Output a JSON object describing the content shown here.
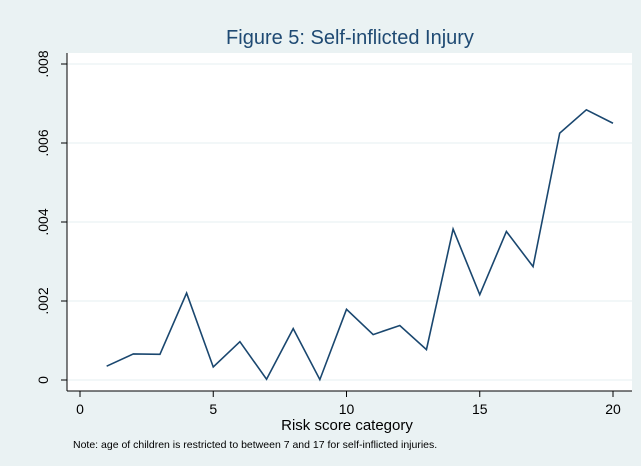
{
  "chart_data": {
    "type": "line",
    "title": "Figure 5: Self-inflicted Injury",
    "xlabel": "Risk score category",
    "ylabel": "",
    "note": "Note: age of children is restricted to between 7 and 17 for self-inflicted injuries.",
    "xlim": [
      0,
      20
    ],
    "ylim": [
      0,
      0.008
    ],
    "xticks": [
      0,
      5,
      10,
      15,
      20
    ],
    "xtick_labels": [
      "0",
      "5",
      "10",
      "15",
      "20"
    ],
    "yticks": [
      0,
      0.002,
      0.004,
      0.006,
      0.008
    ],
    "ytick_labels": [
      "0",
      ".002",
      ".004",
      ".006",
      ".008"
    ],
    "grid": "horizontal",
    "legend": "none",
    "series": [
      {
        "x": [
          1,
          2,
          3,
          4,
          5,
          6,
          7,
          8,
          9,
          10,
          11,
          12,
          13,
          14,
          15,
          16,
          17,
          18,
          19,
          20
        ],
        "values": [
          0.00035,
          0.00066,
          0.00065,
          0.0022,
          0.00033,
          0.00097,
          2e-05,
          0.0013,
          1e-05,
          0.00179,
          0.00115,
          0.00138,
          0.00077,
          0.00382,
          0.00216,
          0.00376,
          0.00287,
          0.00625,
          0.00684,
          0.0065
        ]
      }
    ],
    "colors": {
      "line": "#1a476f",
      "title": "#1f4a73",
      "background": "#eaf2f3",
      "plot_bg": "#ffffff",
      "grid": "#eaf2f3"
    }
  }
}
